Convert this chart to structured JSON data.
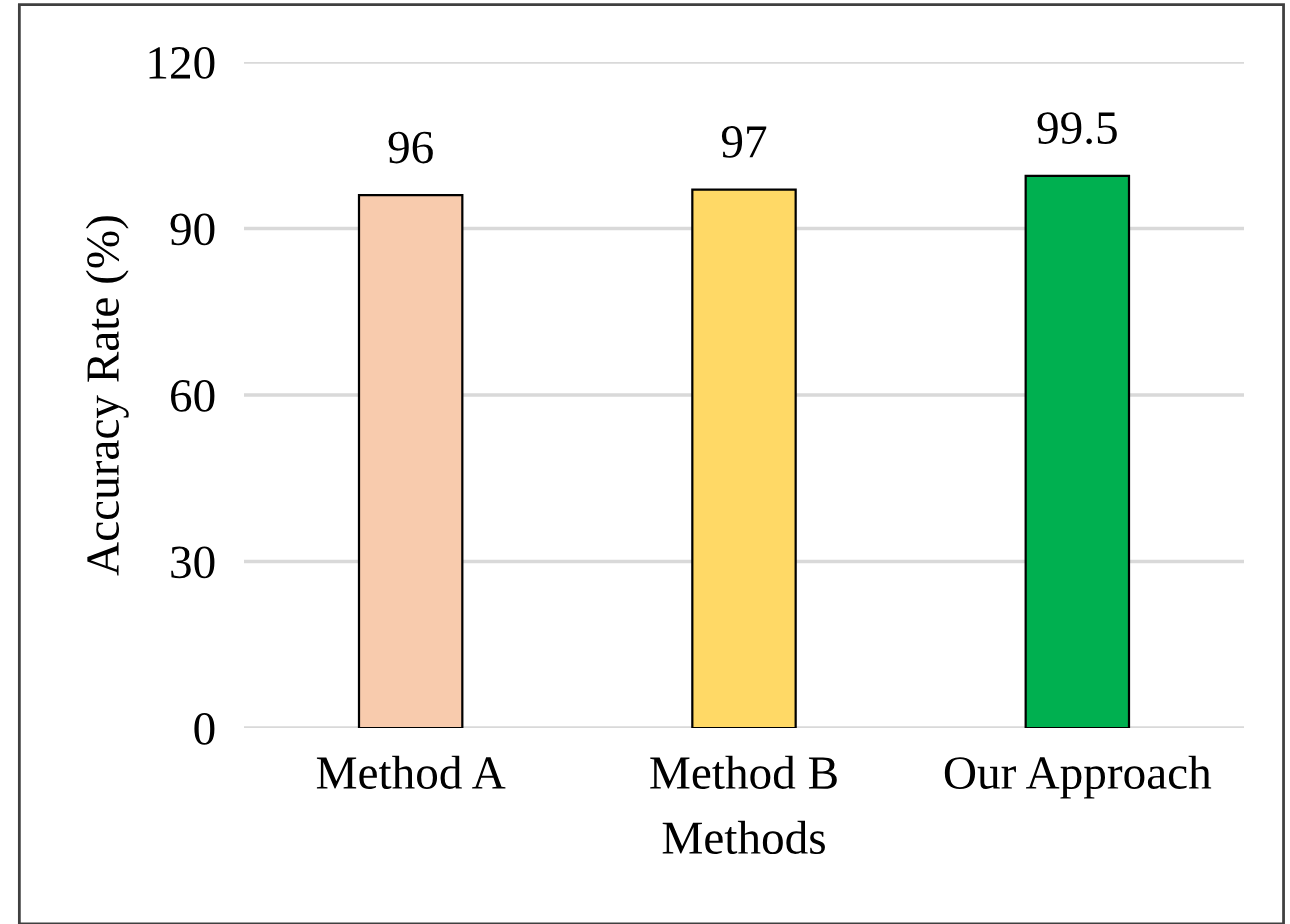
{
  "chart_data": {
    "type": "bar",
    "xlabel": "Methods",
    "ylabel": "Accuracy Rate (%)",
    "categories": [
      "Method A",
      "Method B",
      "Our Approach"
    ],
    "values": [
      96,
      97,
      99.5
    ],
    "colors": [
      "#f8cbad",
      "#ffd966",
      "#00b050"
    ],
    "ylim": [
      0,
      120
    ],
    "yticks": [
      0,
      30,
      60,
      90,
      120
    ],
    "grid": "y",
    "data_labels": true
  }
}
